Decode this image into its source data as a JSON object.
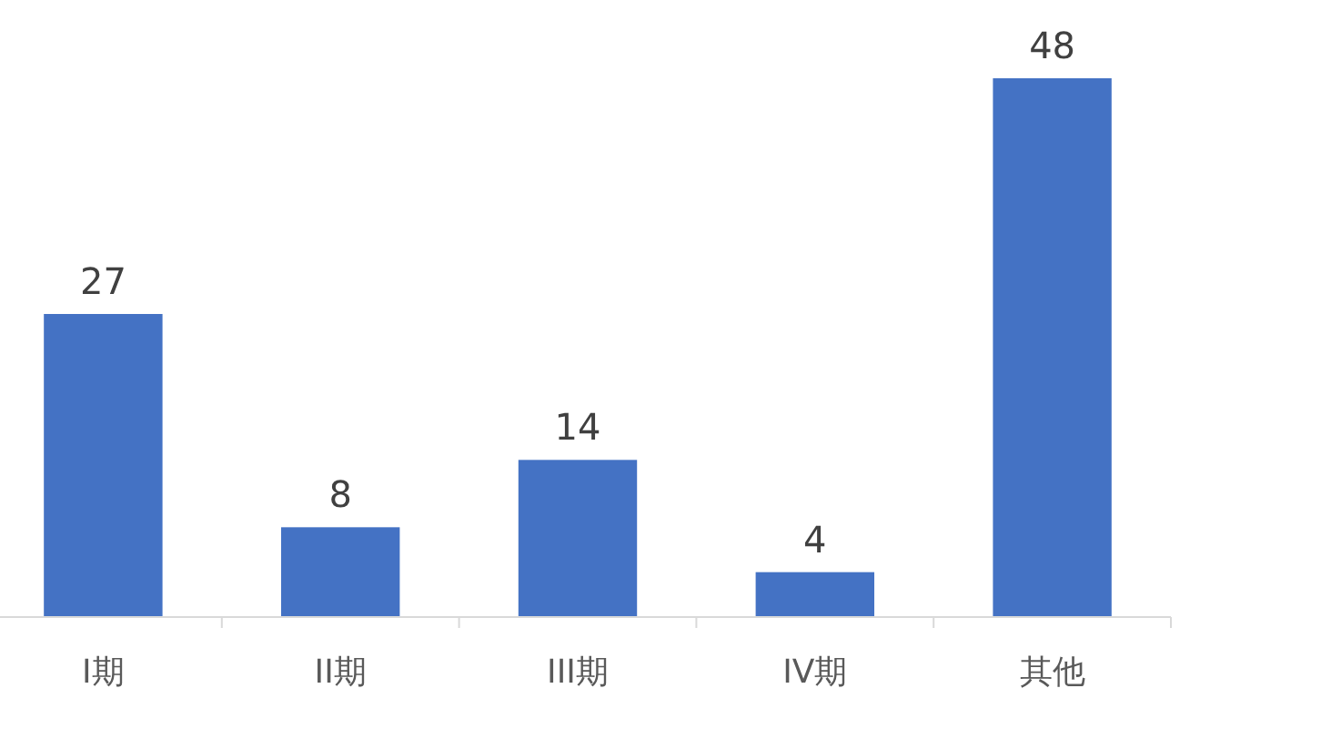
{
  "chart_data": {
    "type": "bar",
    "categories": [
      "I期",
      "II期",
      "III期",
      "IV期",
      "其他"
    ],
    "values": [
      27,
      8,
      14,
      4,
      48
    ],
    "color": "#4472c4",
    "data_labels": true
  }
}
